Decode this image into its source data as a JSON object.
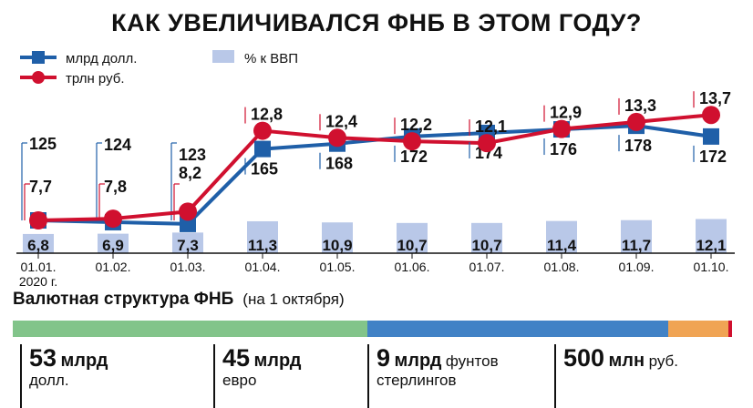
{
  "title": "КАК УВЕЛИЧИВАЛСЯ ФНБ В ЭТОМ ГОДУ?",
  "chart_data": {
    "type": "line",
    "categories": [
      "01.01.",
      "01.02.",
      "01.03.",
      "01.04.",
      "01.05.",
      "01.06.",
      "01.07.",
      "01.08.",
      "01.09.",
      "01.10."
    ],
    "category_note": "2020 г.",
    "series": [
      {
        "name": "млрд долл.",
        "color": "#1f5fa8",
        "marker": "square",
        "values": [
          125,
          124,
          123,
          165,
          168,
          172,
          174,
          176,
          178,
          172
        ]
      },
      {
        "name": "трлн руб.",
        "color": "#d0102f",
        "marker": "circle",
        "values": [
          7.7,
          7.8,
          8.2,
          12.8,
          12.4,
          12.2,
          12.1,
          12.9,
          13.3,
          13.7
        ]
      },
      {
        "name": "% к ВВП",
        "color": "#b9c8e8",
        "type": "bar",
        "values": [
          6.8,
          6.9,
          7.3,
          11.3,
          10.9,
          10.7,
          10.7,
          11.4,
          11.7,
          12.1
        ]
      }
    ],
    "labels": {
      "usd": [
        "125",
        "124",
        "123",
        "165",
        "168",
        "172",
        "174",
        "176",
        "178",
        "172"
      ],
      "rub": [
        "7,7",
        "7,8",
        "8,2",
        "12,8",
        "12,4",
        "12,2",
        "12,1",
        "12,9",
        "13,3",
        "13,7"
      ],
      "gdp": [
        "6,8",
        "6,9",
        "7,3",
        "11,3",
        "10,9",
        "10,7",
        "10,7",
        "11,4",
        "11,7",
        "12,1"
      ]
    },
    "legend": "top-left",
    "grid": false
  },
  "structure": {
    "title": "Валютная структура ФНБ",
    "note": "(на 1 октября)",
    "segments": [
      {
        "value": 53,
        "amount": "53",
        "unit": "млрд",
        "currency": "долл.",
        "color": "#82c48a"
      },
      {
        "value": 45,
        "amount": "45",
        "unit": "млрд",
        "currency": "евро",
        "color": "#4182c6"
      },
      {
        "value": 9,
        "amount": "9",
        "unit": "млрд",
        "currency_line1": "фунтов",
        "currency_line2": "стерлингов",
        "color": "#f0a454"
      },
      {
        "value": 0.5,
        "amount": "500",
        "unit": "млн",
        "currency": "руб.",
        "color": "#d0102f"
      }
    ]
  }
}
